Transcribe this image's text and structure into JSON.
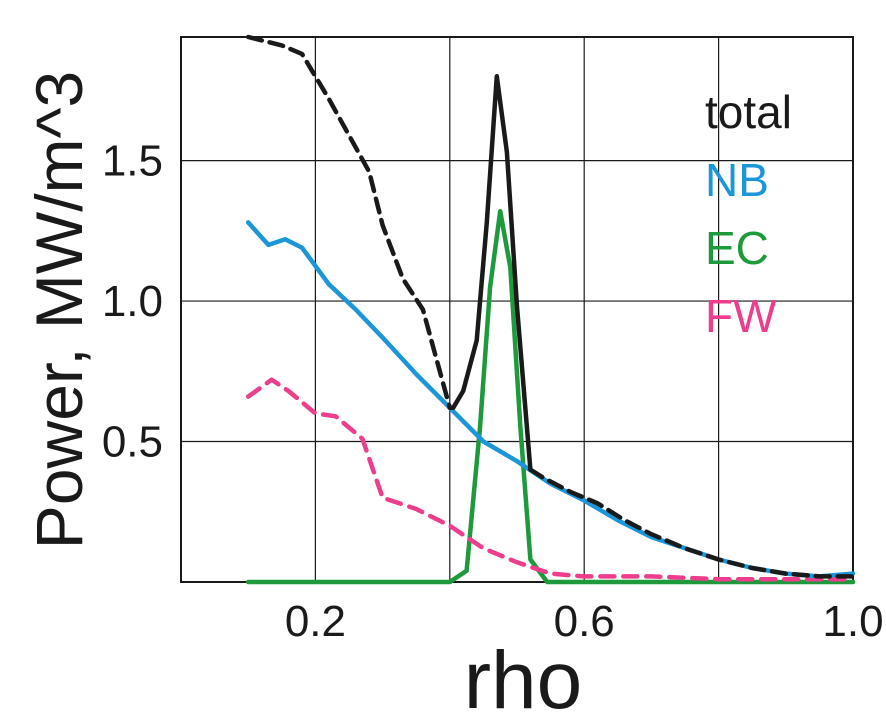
{
  "chart_data": {
    "type": "line",
    "title": "",
    "xlabel": "rho",
    "ylabel": "Power, MW/m^3",
    "xlim": [
      0.0,
      1.0
    ],
    "ylim": [
      0.0,
      1.94
    ],
    "grid": true,
    "legend_position": "top-right",
    "x_ticks": [
      0.2,
      0.4,
      0.6,
      0.8,
      1.0
    ],
    "x_tick_labels": [
      "0.2",
      "",
      "0.6",
      "",
      "1.0"
    ],
    "y_ticks": [
      0.5,
      1.0,
      1.5
    ],
    "y_tick_labels": [
      "0.5",
      "1.0",
      "1.5"
    ],
    "series": [
      {
        "name": "total",
        "color": "#1a1a1a",
        "dash": "segmented",
        "x": [
          0.1,
          0.15,
          0.18,
          0.22,
          0.25,
          0.28,
          0.3,
          0.33,
          0.36,
          0.4,
          0.405,
          0.42,
          0.44,
          0.455,
          0.47,
          0.485,
          0.5,
          0.52,
          0.54,
          0.58,
          0.62,
          0.66,
          0.7,
          0.75,
          0.8,
          0.85,
          0.9,
          0.95,
          1.0
        ],
        "y": [
          1.94,
          1.91,
          1.88,
          1.72,
          1.59,
          1.46,
          1.27,
          1.08,
          0.97,
          0.62,
          0.62,
          0.68,
          0.86,
          1.28,
          1.8,
          1.53,
          0.98,
          0.4,
          0.37,
          0.32,
          0.28,
          0.22,
          0.17,
          0.12,
          0.08,
          0.05,
          0.03,
          0.02,
          0.02
        ]
      },
      {
        "name": "NB",
        "color": "#1b96d9",
        "x": [
          0.1,
          0.13,
          0.155,
          0.18,
          0.22,
          0.26,
          0.3,
          0.35,
          0.4,
          0.45,
          0.5,
          0.55,
          0.6,
          0.65,
          0.7,
          0.75,
          0.8,
          0.85,
          0.9,
          0.95,
          1.0
        ],
        "y": [
          1.28,
          1.2,
          1.22,
          1.19,
          1.06,
          0.97,
          0.87,
          0.74,
          0.62,
          0.5,
          0.43,
          0.35,
          0.29,
          0.22,
          0.16,
          0.12,
          0.08,
          0.05,
          0.03,
          0.02,
          0.03
        ]
      },
      {
        "name": "EC",
        "color": "#1e9a3c",
        "x": [
          0.1,
          0.4,
          0.425,
          0.445,
          0.46,
          0.475,
          0.49,
          0.505,
          0.52,
          0.545,
          1.0
        ],
        "y": [
          0.0,
          0.0,
          0.04,
          0.55,
          1.05,
          1.32,
          1.12,
          0.55,
          0.08,
          0.0,
          0.0
        ],
        "x_dense": []
      },
      {
        "name": "FW",
        "color": "#ee3d8c",
        "dash": "dashed",
        "x": [
          0.1,
          0.135,
          0.16,
          0.2,
          0.23,
          0.27,
          0.3,
          0.35,
          0.4,
          0.45,
          0.5,
          0.55,
          0.6,
          0.7,
          0.8,
          0.9,
          1.0
        ],
        "y": [
          0.66,
          0.72,
          0.68,
          0.6,
          0.59,
          0.51,
          0.3,
          0.26,
          0.2,
          0.12,
          0.07,
          0.03,
          0.02,
          0.02,
          0.01,
          0.01,
          0.01
        ]
      }
    ]
  }
}
